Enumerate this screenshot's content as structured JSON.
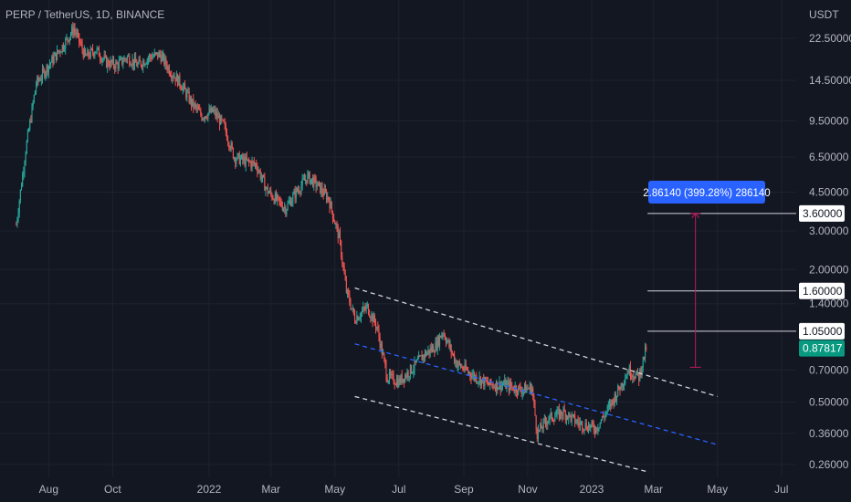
{
  "title": "PERP / TetherUS, 1D, BINANCE",
  "currency": "USDT",
  "chart_data": {
    "type": "candlestick",
    "symbol": "PERP / TetherUS",
    "interval": "1D",
    "exchange": "BINANCE",
    "y_scale": "log",
    "y_axis_unit": "USDT",
    "y_ticks": [
      "22.50000",
      "14.50000",
      "9.50000",
      "6.50000",
      "4.50000",
      "3.00000",
      "2.00000",
      "1.40000",
      "0.70000",
      "0.50000",
      "0.36000",
      "0.26000"
    ],
    "x_ticks": [
      "Aug",
      "Oct",
      "2022",
      "Mar",
      "May",
      "Jul",
      "Sep",
      "Nov",
      "2023",
      "Mar",
      "May",
      "Jul"
    ],
    "current_price": "0.87817",
    "horizontal_levels": [
      "3.60000",
      "1.60000",
      "1.05000"
    ],
    "measure_label": "2.86140 (399.28%) 286140",
    "measure": {
      "from": 0.72,
      "to": 3.6
    },
    "price_path": [
      [
        "2021-07-01",
        3.2
      ],
      [
        "2021-07-10",
        7.0
      ],
      [
        "2021-07-20",
        14.0
      ],
      [
        "2021-08-01",
        17.0
      ],
      [
        "2021-08-15",
        21.0
      ],
      [
        "2021-08-25",
        25.0
      ],
      [
        "2021-09-05",
        18.5
      ],
      [
        "2021-09-15",
        20.0
      ],
      [
        "2021-09-25",
        17.5
      ],
      [
        "2021-10-05",
        17.0
      ],
      [
        "2021-10-15",
        18.5
      ],
      [
        "2021-10-25",
        17.0
      ],
      [
        "2021-11-05",
        18.5
      ],
      [
        "2021-11-15",
        19.0
      ],
      [
        "2021-11-25",
        16.0
      ],
      [
        "2021-12-05",
        14.0
      ],
      [
        "2021-12-15",
        11.5
      ],
      [
        "2021-12-25",
        10.0
      ],
      [
        "2022-01-05",
        10.5
      ],
      [
        "2022-01-15",
        9.0
      ],
      [
        "2022-01-25",
        6.5
      ],
      [
        "2022-02-05",
        6.2
      ],
      [
        "2022-02-15",
        6.0
      ],
      [
        "2022-02-25",
        4.6
      ],
      [
        "2022-03-05",
        4.2
      ],
      [
        "2022-03-15",
        3.8
      ],
      [
        "2022-03-25",
        4.5
      ],
      [
        "2022-04-05",
        5.3
      ],
      [
        "2022-04-15",
        4.8
      ],
      [
        "2022-04-25",
        4.2
      ],
      [
        "2022-05-05",
        2.8
      ],
      [
        "2022-05-12",
        1.6
      ],
      [
        "2022-05-20",
        1.2
      ],
      [
        "2022-06-01",
        1.35
      ],
      [
        "2022-06-10",
        1.1
      ],
      [
        "2022-06-20",
        0.65
      ],
      [
        "2022-07-01",
        0.62
      ],
      [
        "2022-07-15",
        0.72
      ],
      [
        "2022-07-25",
        0.82
      ],
      [
        "2022-08-05",
        0.9
      ],
      [
        "2022-08-12",
        1.05
      ],
      [
        "2022-08-25",
        0.75
      ],
      [
        "2022-09-10",
        0.66
      ],
      [
        "2022-09-25",
        0.6
      ],
      [
        "2022-10-10",
        0.6
      ],
      [
        "2022-10-25",
        0.57
      ],
      [
        "2022-11-05",
        0.58
      ],
      [
        "2022-11-10",
        0.36
      ],
      [
        "2022-11-20",
        0.42
      ],
      [
        "2022-12-05",
        0.45
      ],
      [
        "2022-12-20",
        0.4
      ],
      [
        "2023-01-05",
        0.38
      ],
      [
        "2023-01-15",
        0.45
      ],
      [
        "2023-01-25",
        0.55
      ],
      [
        "2023-02-05",
        0.7
      ],
      [
        "2023-02-15",
        0.65
      ],
      [
        "2023-02-22",
        0.88
      ]
    ],
    "trendlines": [
      {
        "name": "upper",
        "style": "dashed",
        "color": "#d1d4dc",
        "points": [
          [
            "2022-05-20",
            1.65
          ],
          [
            "2023-05-01",
            0.53
          ]
        ]
      },
      {
        "name": "middle",
        "style": "dashed",
        "color": "#2962ff",
        "points": [
          [
            "2022-05-20",
            0.92
          ],
          [
            "2023-05-01",
            0.32
          ]
        ]
      },
      {
        "name": "lower",
        "style": "dashed",
        "color": "#d1d4dc",
        "points": [
          [
            "2022-05-20",
            0.53
          ],
          [
            "2023-02-25",
            0.24
          ]
        ]
      }
    ]
  },
  "colors": {
    "background": "#131722",
    "grid": "#1e222d",
    "up": "#26a69a",
    "down": "#ef5350",
    "text": "#b2b5be",
    "price_badge": "#089981",
    "measure_badge": "#2962ff",
    "measure_line": "#c2185b"
  }
}
